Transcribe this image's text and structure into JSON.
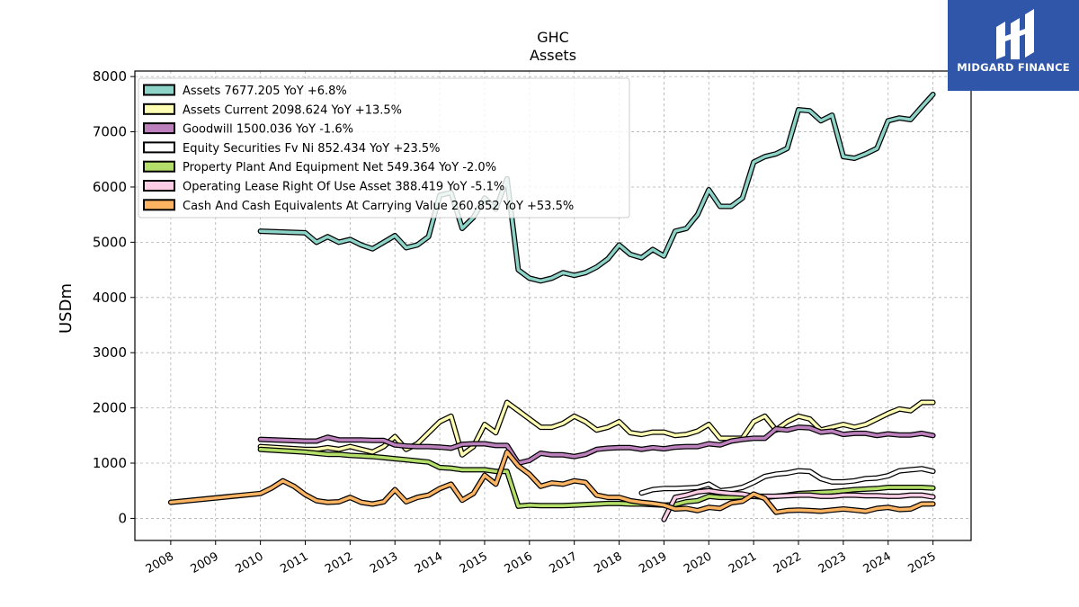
{
  "chart_data": {
    "type": "line",
    "title": "GHC",
    "subtitle": "Assets",
    "ylabel": "USDm",
    "ylim": [
      -400,
      8100
    ],
    "xlim": [
      2007.2,
      2025.85
    ],
    "yticks": [
      0,
      1000,
      2000,
      3000,
      4000,
      5000,
      6000,
      7000,
      8000
    ],
    "xticks": [
      "2008",
      "2009",
      "2010",
      "2011",
      "2012",
      "2013",
      "2014",
      "2015",
      "2016",
      "2017",
      "2018",
      "2019",
      "2020",
      "2021",
      "2022",
      "2023",
      "2024",
      "2025"
    ],
    "grid": true,
    "legend_position": "top-left",
    "series": [
      {
        "name": "Assets",
        "legend_label": "Assets  7677.205 YoY +6.8%",
        "color": "#8dd3c7",
        "x": [
          2010.0,
          2011.0,
          2011.25,
          2011.5,
          2011.75,
          2012.0,
          2012.25,
          2012.5,
          2012.75,
          2013.0,
          2013.25,
          2013.5,
          2013.75,
          2014.0,
          2014.25,
          2014.5,
          2014.75,
          2015.0,
          2015.25,
          2015.5,
          2015.75,
          2016.0,
          2016.25,
          2016.5,
          2016.75,
          2017.0,
          2017.25,
          2017.5,
          2017.75,
          2018.0,
          2018.25,
          2018.5,
          2018.75,
          2019.0,
          2019.25,
          2019.5,
          2019.75,
          2020.0,
          2020.25,
          2020.5,
          2020.75,
          2021.0,
          2021.25,
          2021.5,
          2021.75,
          2022.0,
          2022.25,
          2022.5,
          2022.75,
          2023.0,
          2023.25,
          2023.5,
          2023.75,
          2024.0,
          2024.25,
          2024.5,
          2024.75,
          2025.0
        ],
        "y": [
          5200,
          5170,
          5000,
          5100,
          5000,
          5050,
          4950,
          4880,
          5000,
          5120,
          4900,
          4950,
          5100,
          5850,
          5900,
          5250,
          5450,
          5800,
          5600,
          6150,
          4500,
          4350,
          4300,
          4350,
          4450,
          4400,
          4450,
          4550,
          4700,
          4950,
          4780,
          4720,
          4870,
          4750,
          5200,
          5250,
          5500,
          5950,
          5650,
          5650,
          5800,
          6450,
          6550,
          6600,
          6700,
          7400,
          7380,
          7200,
          7300,
          6550,
          6520,
          6600,
          6700,
          7200,
          7250,
          7220,
          7450,
          7677
        ]
      },
      {
        "name": "Assets Current",
        "legend_label": "Assets Current  2098.624 YoY +13.5%",
        "color": "#ffffb3",
        "x": [
          2010.0,
          2011.0,
          2011.25,
          2011.5,
          2011.75,
          2012.0,
          2012.25,
          2012.5,
          2012.75,
          2013.0,
          2013.25,
          2013.5,
          2013.75,
          2014.0,
          2014.25,
          2014.5,
          2014.75,
          2015.0,
          2015.25,
          2015.5,
          2015.75,
          2016.0,
          2016.25,
          2016.5,
          2016.75,
          2017.0,
          2017.25,
          2017.5,
          2017.75,
          2018.0,
          2018.25,
          2018.5,
          2018.75,
          2019.0,
          2019.25,
          2019.5,
          2019.75,
          2020.0,
          2020.25,
          2020.5,
          2020.75,
          2021.0,
          2021.25,
          2021.5,
          2021.75,
          2022.0,
          2022.25,
          2022.5,
          2022.75,
          2023.0,
          2023.25,
          2023.5,
          2023.75,
          2024.0,
          2024.25,
          2024.5,
          2024.75,
          2025.0
        ],
        "y": [
          1300,
          1250,
          1250,
          1280,
          1250,
          1300,
          1250,
          1200,
          1300,
          1480,
          1250,
          1350,
          1550,
          1750,
          1850,
          1150,
          1300,
          1700,
          1550,
          2100,
          1950,
          1800,
          1650,
          1650,
          1720,
          1850,
          1750,
          1600,
          1650,
          1750,
          1550,
          1520,
          1560,
          1560,
          1500,
          1520,
          1580,
          1700,
          1450,
          1450,
          1450,
          1750,
          1850,
          1600,
          1750,
          1850,
          1800,
          1600,
          1650,
          1700,
          1650,
          1700,
          1800,
          1900,
          1980,
          1950,
          2100,
          2099
        ]
      },
      {
        "name": "Goodwill",
        "legend_label": "Goodwill  1500.036 YoY -1.6%",
        "color": "#bc80bd",
        "x": [
          2010.0,
          2011.0,
          2011.25,
          2011.5,
          2011.75,
          2012.0,
          2012.25,
          2012.5,
          2012.75,
          2013.0,
          2013.25,
          2013.5,
          2013.75,
          2014.0,
          2014.25,
          2014.5,
          2014.75,
          2015.0,
          2015.25,
          2015.5,
          2015.75,
          2016.0,
          2016.25,
          2016.5,
          2016.75,
          2017.0,
          2017.25,
          2017.5,
          2017.75,
          2018.0,
          2018.25,
          2018.5,
          2018.75,
          2019.0,
          2019.25,
          2019.5,
          2019.75,
          2020.0,
          2020.25,
          2020.5,
          2020.75,
          2021.0,
          2021.25,
          2021.5,
          2021.75,
          2022.0,
          2022.25,
          2022.5,
          2022.75,
          2023.0,
          2023.25,
          2023.5,
          2023.75,
          2024.0,
          2024.25,
          2024.5,
          2024.75,
          2025.0
        ],
        "y": [
          1430,
          1400,
          1400,
          1470,
          1420,
          1420,
          1420,
          1410,
          1410,
          1330,
          1310,
          1300,
          1300,
          1290,
          1270,
          1340,
          1350,
          1350,
          1320,
          1320,
          1000,
          1050,
          1180,
          1150,
          1150,
          1120,
          1160,
          1250,
          1270,
          1280,
          1280,
          1250,
          1280,
          1260,
          1290,
          1300,
          1300,
          1350,
          1330,
          1400,
          1430,
          1450,
          1450,
          1620,
          1600,
          1650,
          1640,
          1560,
          1580,
          1520,
          1540,
          1540,
          1500,
          1530,
          1510,
          1510,
          1540,
          1500
        ]
      },
      {
        "name": "Equity Securities Fv Ni",
        "legend_label": "Equity Securities Fv Ni  852.434 YoY +23.5%",
        "color": "#ffffff",
        "x": [
          2018.5,
          2018.75,
          2019.0,
          2019.25,
          2019.5,
          2019.75,
          2020.0,
          2020.25,
          2020.5,
          2020.75,
          2021.0,
          2021.25,
          2021.5,
          2021.75,
          2022.0,
          2022.25,
          2022.5,
          2022.75,
          2023.0,
          2023.25,
          2023.5,
          2023.75,
          2024.0,
          2024.25,
          2024.5,
          2024.75,
          2025.0
        ],
        "y": [
          460,
          520,
          540,
          540,
          550,
          560,
          620,
          500,
          520,
          560,
          650,
          760,
          800,
          820,
          860,
          850,
          720,
          660,
          660,
          680,
          720,
          730,
          770,
          860,
          880,
          900,
          852
        ]
      },
      {
        "name": "Property Plant And Equipment Net",
        "legend_label": "Property Plant And Equipment Net  549.364 YoY -2.0%",
        "color": "#b3de69",
        "x": [
          2010.0,
          2011.0,
          2011.25,
          2011.5,
          2011.75,
          2012.0,
          2012.25,
          2012.5,
          2012.75,
          2013.0,
          2013.25,
          2013.5,
          2013.75,
          2014.0,
          2014.25,
          2014.5,
          2014.75,
          2015.0,
          2015.25,
          2015.5,
          2015.75,
          2016.0,
          2016.25,
          2016.5,
          2016.75,
          2017.0,
          2017.25,
          2017.5,
          2017.75,
          2018.0,
          2018.25,
          2018.5,
          2018.75,
          2019.0,
          2019.25,
          2019.5,
          2019.75,
          2020.0,
          2020.25,
          2020.5,
          2020.75,
          2021.0,
          2021.25,
          2021.5,
          2021.75,
          2022.0,
          2022.25,
          2022.5,
          2022.75,
          2023.0,
          2023.25,
          2023.5,
          2023.75,
          2024.0,
          2024.25,
          2024.5,
          2024.75,
          2025.0
        ],
        "y": [
          1250,
          1200,
          1180,
          1160,
          1160,
          1140,
          1130,
          1120,
          1100,
          1080,
          1060,
          1040,
          1020,
          920,
          910,
          880,
          880,
          880,
          850,
          850,
          220,
          240,
          230,
          230,
          230,
          240,
          250,
          260,
          270,
          270,
          260,
          260,
          250,
          240,
          250,
          300,
          320,
          400,
          380,
          380,
          390,
          400,
          380,
          400,
          420,
          450,
          460,
          470,
          480,
          500,
          520,
          530,
          540,
          560,
          560,
          560,
          560,
          549
        ]
      },
      {
        "name": "Operating Lease Right Of Use Asset",
        "legend_label": "Operating Lease Right Of Use Asset  388.419 YoY -5.1%",
        "color": "#fccde5",
        "x": [
          2019.0,
          2019.25,
          2019.5,
          2019.75,
          2020.0,
          2020.25,
          2020.5,
          2020.75,
          2021.0,
          2021.25,
          2021.5,
          2021.75,
          2022.0,
          2022.25,
          2022.5,
          2022.75,
          2023.0,
          2023.25,
          2023.5,
          2023.75,
          2024.0,
          2024.25,
          2024.5,
          2024.75,
          2025.0
        ],
        "y": [
          -20,
          380,
          420,
          480,
          500,
          470,
          450,
          440,
          400,
          400,
          400,
          410,
          420,
          420,
          400,
          400,
          420,
          420,
          410,
          410,
          400,
          400,
          420,
          420,
          388
        ]
      },
      {
        "name": "Cash And Cash Equivalents At Carrying Value",
        "legend_label": "Cash And Cash Equivalents At Carrying Value  260.852 YoY +53.5%",
        "color": "#fdb462",
        "x": [
          2008.0,
          2010.0,
          2010.25,
          2010.5,
          2010.75,
          2011.0,
          2011.25,
          2011.5,
          2011.75,
          2012.0,
          2012.25,
          2012.5,
          2012.75,
          2013.0,
          2013.25,
          2013.5,
          2013.75,
          2014.0,
          2014.25,
          2014.5,
          2014.75,
          2015.0,
          2015.25,
          2015.5,
          2015.75,
          2016.0,
          2016.25,
          2016.5,
          2016.75,
          2017.0,
          2017.25,
          2017.5,
          2017.75,
          2018.0,
          2018.25,
          2018.5,
          2018.75,
          2019.0,
          2019.25,
          2019.5,
          2019.75,
          2020.0,
          2020.25,
          2020.5,
          2020.75,
          2021.0,
          2021.25,
          2021.5,
          2021.75,
          2022.0,
          2022.25,
          2022.5,
          2022.75,
          2023.0,
          2023.25,
          2023.5,
          2023.75,
          2024.0,
          2024.25,
          2024.5,
          2024.75,
          2025.0
        ],
        "y": [
          290,
          450,
          550,
          680,
          580,
          430,
          320,
          290,
          300,
          380,
          290,
          260,
          300,
          520,
          300,
          380,
          420,
          540,
          620,
          330,
          450,
          780,
          620,
          1200,
          950,
          800,
          580,
          640,
          620,
          680,
          650,
          420,
          380,
          380,
          320,
          290,
          270,
          240,
          170,
          180,
          140,
          200,
          180,
          280,
          310,
          440,
          360,
          110,
          140,
          150,
          140,
          130,
          150,
          170,
          150,
          130,
          180,
          200,
          160,
          170,
          260,
          261
        ]
      }
    ]
  },
  "logo": {
    "text": "MIDGARD FINANCE",
    "color": "#2f56a8"
  }
}
